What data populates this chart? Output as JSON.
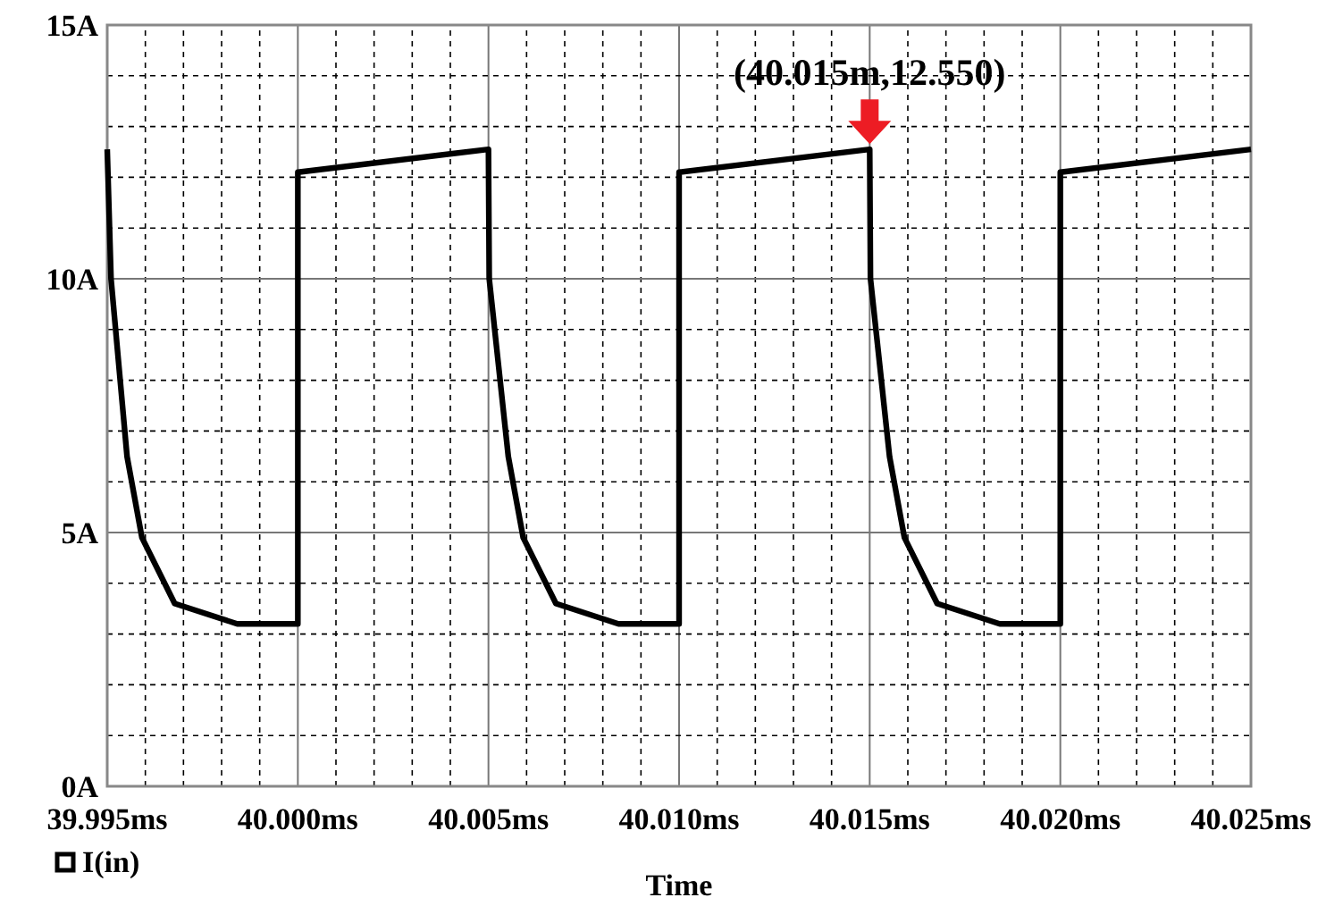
{
  "chart_data": {
    "type": "line",
    "xlabel": "Time",
    "x": [
      39.995,
      39.9951,
      39.99552,
      39.99591,
      39.99677,
      39.99841,
      40.0,
      40.0,
      40.005,
      40.00502,
      40.00552,
      40.00591,
      40.00677,
      40.00841,
      40.01,
      40.01,
      40.015,
      40.01502,
      40.01552,
      40.01591,
      40.01677,
      40.01841,
      40.02,
      40.02,
      40.025
    ],
    "series": [
      {
        "name": "I(in)",
        "color": "#000000",
        "values": [
          12.55,
          10.0,
          6.5,
          4.9,
          3.6,
          3.2,
          3.2,
          12.1,
          12.55,
          10.0,
          6.5,
          4.9,
          3.6,
          3.2,
          3.2,
          12.1,
          12.55,
          10.0,
          6.5,
          4.9,
          3.6,
          3.2,
          3.2,
          12.1,
          12.55
        ]
      }
    ],
    "xlim": [
      39.995,
      40.025
    ],
    "xticks": [
      {
        "value": 39.995,
        "label": "39.995ms"
      },
      {
        "value": 39.996,
        "label": null
      },
      {
        "value": 39.997,
        "label": null
      },
      {
        "value": 39.998,
        "label": null
      },
      {
        "value": 39.999,
        "label": null
      },
      {
        "value": 40.0,
        "label": "40.000ms"
      },
      {
        "value": 40.001,
        "label": null
      },
      {
        "value": 40.002,
        "label": null
      },
      {
        "value": 40.003,
        "label": null
      },
      {
        "value": 40.004,
        "label": null
      },
      {
        "value": 40.005,
        "label": "40.005ms"
      },
      {
        "value": 40.006,
        "label": null
      },
      {
        "value": 40.007,
        "label": null
      },
      {
        "value": 40.008,
        "label": null
      },
      {
        "value": 40.009,
        "label": null
      },
      {
        "value": 40.01,
        "label": "40.010ms"
      },
      {
        "value": 40.011,
        "label": null
      },
      {
        "value": 40.012,
        "label": null
      },
      {
        "value": 40.013,
        "label": null
      },
      {
        "value": 40.014,
        "label": null
      },
      {
        "value": 40.015,
        "label": "40.015ms"
      },
      {
        "value": 40.016,
        "label": null
      },
      {
        "value": 40.017,
        "label": null
      },
      {
        "value": 40.018,
        "label": null
      },
      {
        "value": 40.019,
        "label": null
      },
      {
        "value": 40.02,
        "label": "40.020ms"
      },
      {
        "value": 40.021,
        "label": null
      },
      {
        "value": 40.022,
        "label": null
      },
      {
        "value": 40.023,
        "label": null
      },
      {
        "value": 40.024,
        "label": null
      },
      {
        "value": 40.025,
        "label": "40.025ms"
      }
    ],
    "ylim": [
      0,
      15
    ],
    "yticks": [
      {
        "value": 0,
        "label": "0A"
      },
      {
        "value": 1,
        "label": null
      },
      {
        "value": 2,
        "label": null
      },
      {
        "value": 3,
        "label": null
      },
      {
        "value": 4,
        "label": null
      },
      {
        "value": 5,
        "label": "5A"
      },
      {
        "value": 6,
        "label": null
      },
      {
        "value": 7,
        "label": null
      },
      {
        "value": 8,
        "label": null
      },
      {
        "value": 9,
        "label": null
      },
      {
        "value": 10,
        "label": "10A"
      },
      {
        "value": 11,
        "label": null
      },
      {
        "value": 12,
        "label": null
      },
      {
        "value": 13,
        "label": null
      },
      {
        "value": 14,
        "label": null
      },
      {
        "value": 15,
        "label": "15A"
      }
    ],
    "grid": true,
    "legend": "bottom left",
    "annotations": [
      {
        "text": "(40.015m,12.550)",
        "x": 40.015,
        "y": 12.55
      }
    ]
  }
}
